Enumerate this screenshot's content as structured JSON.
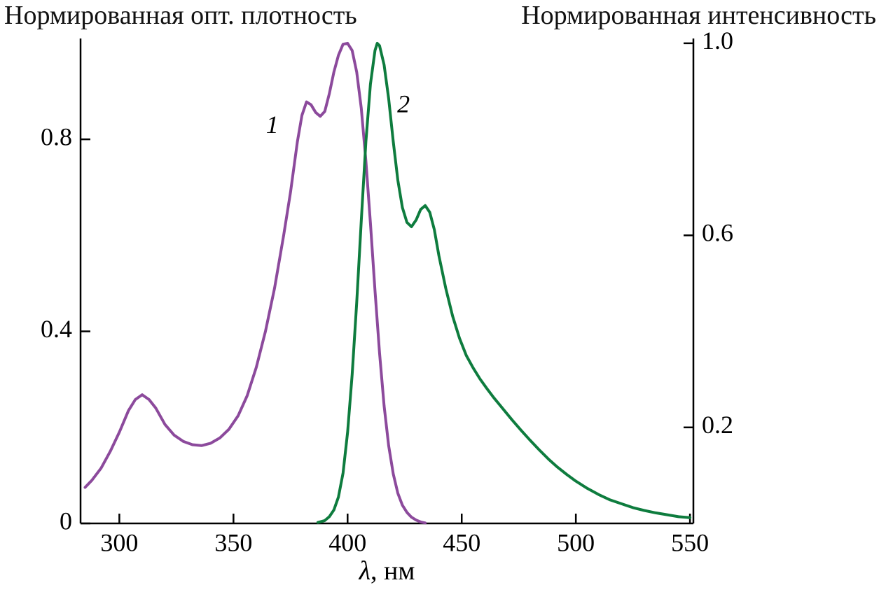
{
  "chart_data": {
    "type": "line",
    "title": "",
    "grid": false,
    "legend": "none (curves labeled 1 and 2 on plot)",
    "x_axis": {
      "label_symbol": "λ",
      "label_rest": ", нм",
      "range": [
        283,
        551.5
      ],
      "ticks": [
        300,
        350,
        400,
        450,
        500,
        550
      ]
    },
    "left_axis": {
      "title": "Нормированная опт. плотность",
      "range": [
        0,
        1.01
      ],
      "ticks": [
        {
          "value": 0,
          "label": "0"
        },
        {
          "value": 0.4,
          "label": "0.4"
        },
        {
          "value": 0.8,
          "label": "0.8"
        }
      ]
    },
    "right_axis": {
      "title": "Нормированная интенсивность",
      "range": [
        0,
        1.01
      ],
      "ticks": [
        {
          "value": 0.2,
          "label": "0.2"
        },
        {
          "value": 0.6,
          "label": "0.6"
        },
        {
          "value": 1.0,
          "label": "1.0"
        }
      ]
    },
    "series": [
      {
        "name": "1",
        "color": "#8c4a9c",
        "points": [
          [
            285,
            0.075
          ],
          [
            288,
            0.09
          ],
          [
            292,
            0.115
          ],
          [
            296,
            0.15
          ],
          [
            300,
            0.19
          ],
          [
            304,
            0.235
          ],
          [
            307,
            0.258
          ],
          [
            310,
            0.268
          ],
          [
            313,
            0.258
          ],
          [
            316,
            0.24
          ],
          [
            320,
            0.206
          ],
          [
            324,
            0.184
          ],
          [
            328,
            0.171
          ],
          [
            332,
            0.164
          ],
          [
            336,
            0.162
          ],
          [
            340,
            0.167
          ],
          [
            344,
            0.178
          ],
          [
            348,
            0.196
          ],
          [
            352,
            0.224
          ],
          [
            356,
            0.266
          ],
          [
            360,
            0.325
          ],
          [
            364,
            0.4
          ],
          [
            368,
            0.49
          ],
          [
            372,
            0.6
          ],
          [
            375,
            0.69
          ],
          [
            378,
            0.795
          ],
          [
            380,
            0.85
          ],
          [
            382,
            0.878
          ],
          [
            384,
            0.872
          ],
          [
            386,
            0.856
          ],
          [
            388,
            0.848
          ],
          [
            390,
            0.858
          ],
          [
            392,
            0.895
          ],
          [
            394,
            0.94
          ],
          [
            396,
            0.975
          ],
          [
            398,
            0.998
          ],
          [
            400,
            1.0
          ],
          [
            402,
            0.985
          ],
          [
            404,
            0.94
          ],
          [
            406,
            0.865
          ],
          [
            408,
            0.755
          ],
          [
            410,
            0.625
          ],
          [
            412,
            0.485
          ],
          [
            414,
            0.355
          ],
          [
            416,
            0.245
          ],
          [
            418,
            0.162
          ],
          [
            420,
            0.103
          ],
          [
            422,
            0.063
          ],
          [
            424,
            0.038
          ],
          [
            426,
            0.023
          ],
          [
            428,
            0.013
          ],
          [
            430,
            0.007
          ],
          [
            432,
            0.003
          ],
          [
            434,
            0.001
          ]
        ]
      },
      {
        "name": "2",
        "color": "#0e7c3e",
        "points": [
          [
            387,
            0.002
          ],
          [
            390,
            0.006
          ],
          [
            392,
            0.014
          ],
          [
            394,
            0.028
          ],
          [
            396,
            0.055
          ],
          [
            398,
            0.105
          ],
          [
            400,
            0.19
          ],
          [
            402,
            0.31
          ],
          [
            404,
            0.46
          ],
          [
            406,
            0.63
          ],
          [
            408,
            0.795
          ],
          [
            410,
            0.915
          ],
          [
            412,
            0.985
          ],
          [
            413,
            1.0
          ],
          [
            414,
            0.995
          ],
          [
            416,
            0.955
          ],
          [
            418,
            0.885
          ],
          [
            420,
            0.795
          ],
          [
            422,
            0.715
          ],
          [
            424,
            0.658
          ],
          [
            426,
            0.627
          ],
          [
            428,
            0.618
          ],
          [
            430,
            0.632
          ],
          [
            432,
            0.654
          ],
          [
            434,
            0.662
          ],
          [
            436,
            0.648
          ],
          [
            438,
            0.612
          ],
          [
            440,
            0.558
          ],
          [
            443,
            0.49
          ],
          [
            446,
            0.432
          ],
          [
            449,
            0.386
          ],
          [
            452,
            0.35
          ],
          [
            455,
            0.324
          ],
          [
            458,
            0.301
          ],
          [
            461,
            0.281
          ],
          [
            464,
            0.262
          ],
          [
            468,
            0.239
          ],
          [
            472,
            0.216
          ],
          [
            476,
            0.194
          ],
          [
            480,
            0.173
          ],
          [
            484,
            0.153
          ],
          [
            488,
            0.134
          ],
          [
            492,
            0.117
          ],
          [
            496,
            0.102
          ],
          [
            500,
            0.088
          ],
          [
            505,
            0.073
          ],
          [
            510,
            0.06
          ],
          [
            515,
            0.049
          ],
          [
            520,
            0.041
          ],
          [
            525,
            0.033
          ],
          [
            530,
            0.027
          ],
          [
            535,
            0.022
          ],
          [
            540,
            0.018
          ],
          [
            545,
            0.014
          ],
          [
            550,
            0.012
          ]
        ]
      }
    ],
    "annotations": [
      {
        "text": "1",
        "x": 367,
        "y": 0.825
      },
      {
        "text": "2",
        "x": 424.5,
        "y": 0.868
      }
    ]
  }
}
